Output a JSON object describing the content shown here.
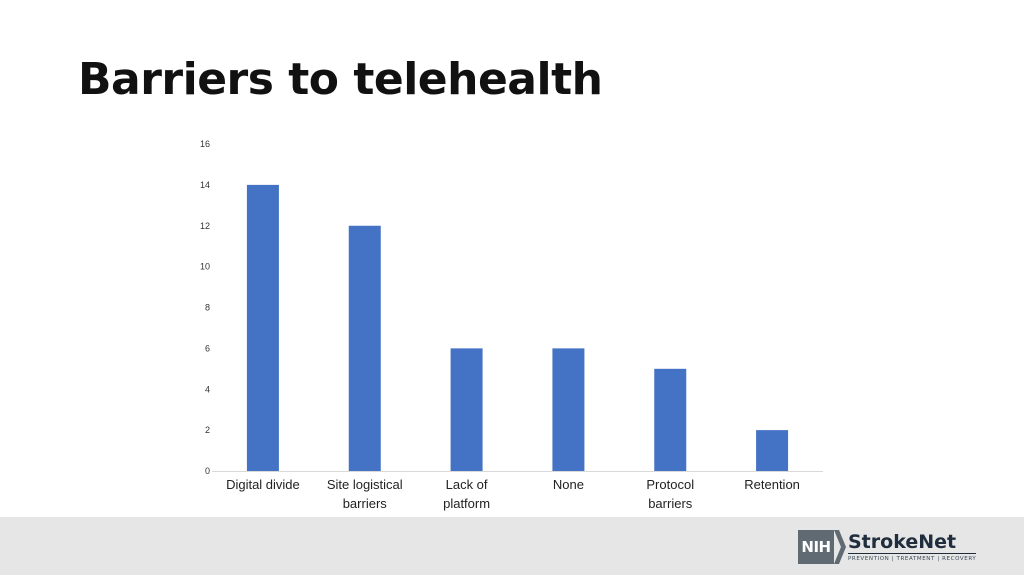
{
  "slide": {
    "title": "Barriers to telehealth"
  },
  "logo": {
    "mark": "NIH",
    "name": "StrokeNet",
    "tagline": "PREVENTION | TREATMENT | RECOVERY"
  },
  "colors": {
    "bar": "#4472C4",
    "footer": "#e6e6e6",
    "axis_text": "#333333"
  },
  "chart_data": {
    "type": "bar",
    "categories": [
      [
        "Digital divide"
      ],
      [
        "Site logistical",
        "barriers"
      ],
      [
        "Lack of",
        "platform"
      ],
      [
        "None"
      ],
      [
        "Protocol",
        "barriers"
      ],
      [
        "Retention"
      ]
    ],
    "values": [
      14,
      12,
      6,
      6,
      5,
      2
    ],
    "title": "",
    "xlabel": "",
    "ylabel": "",
    "ylim": [
      0,
      16
    ],
    "yticks": [
      "0",
      "2",
      "4",
      "6",
      "8",
      "10",
      "12",
      "14",
      "16"
    ],
    "grid": false,
    "legend": "none"
  }
}
